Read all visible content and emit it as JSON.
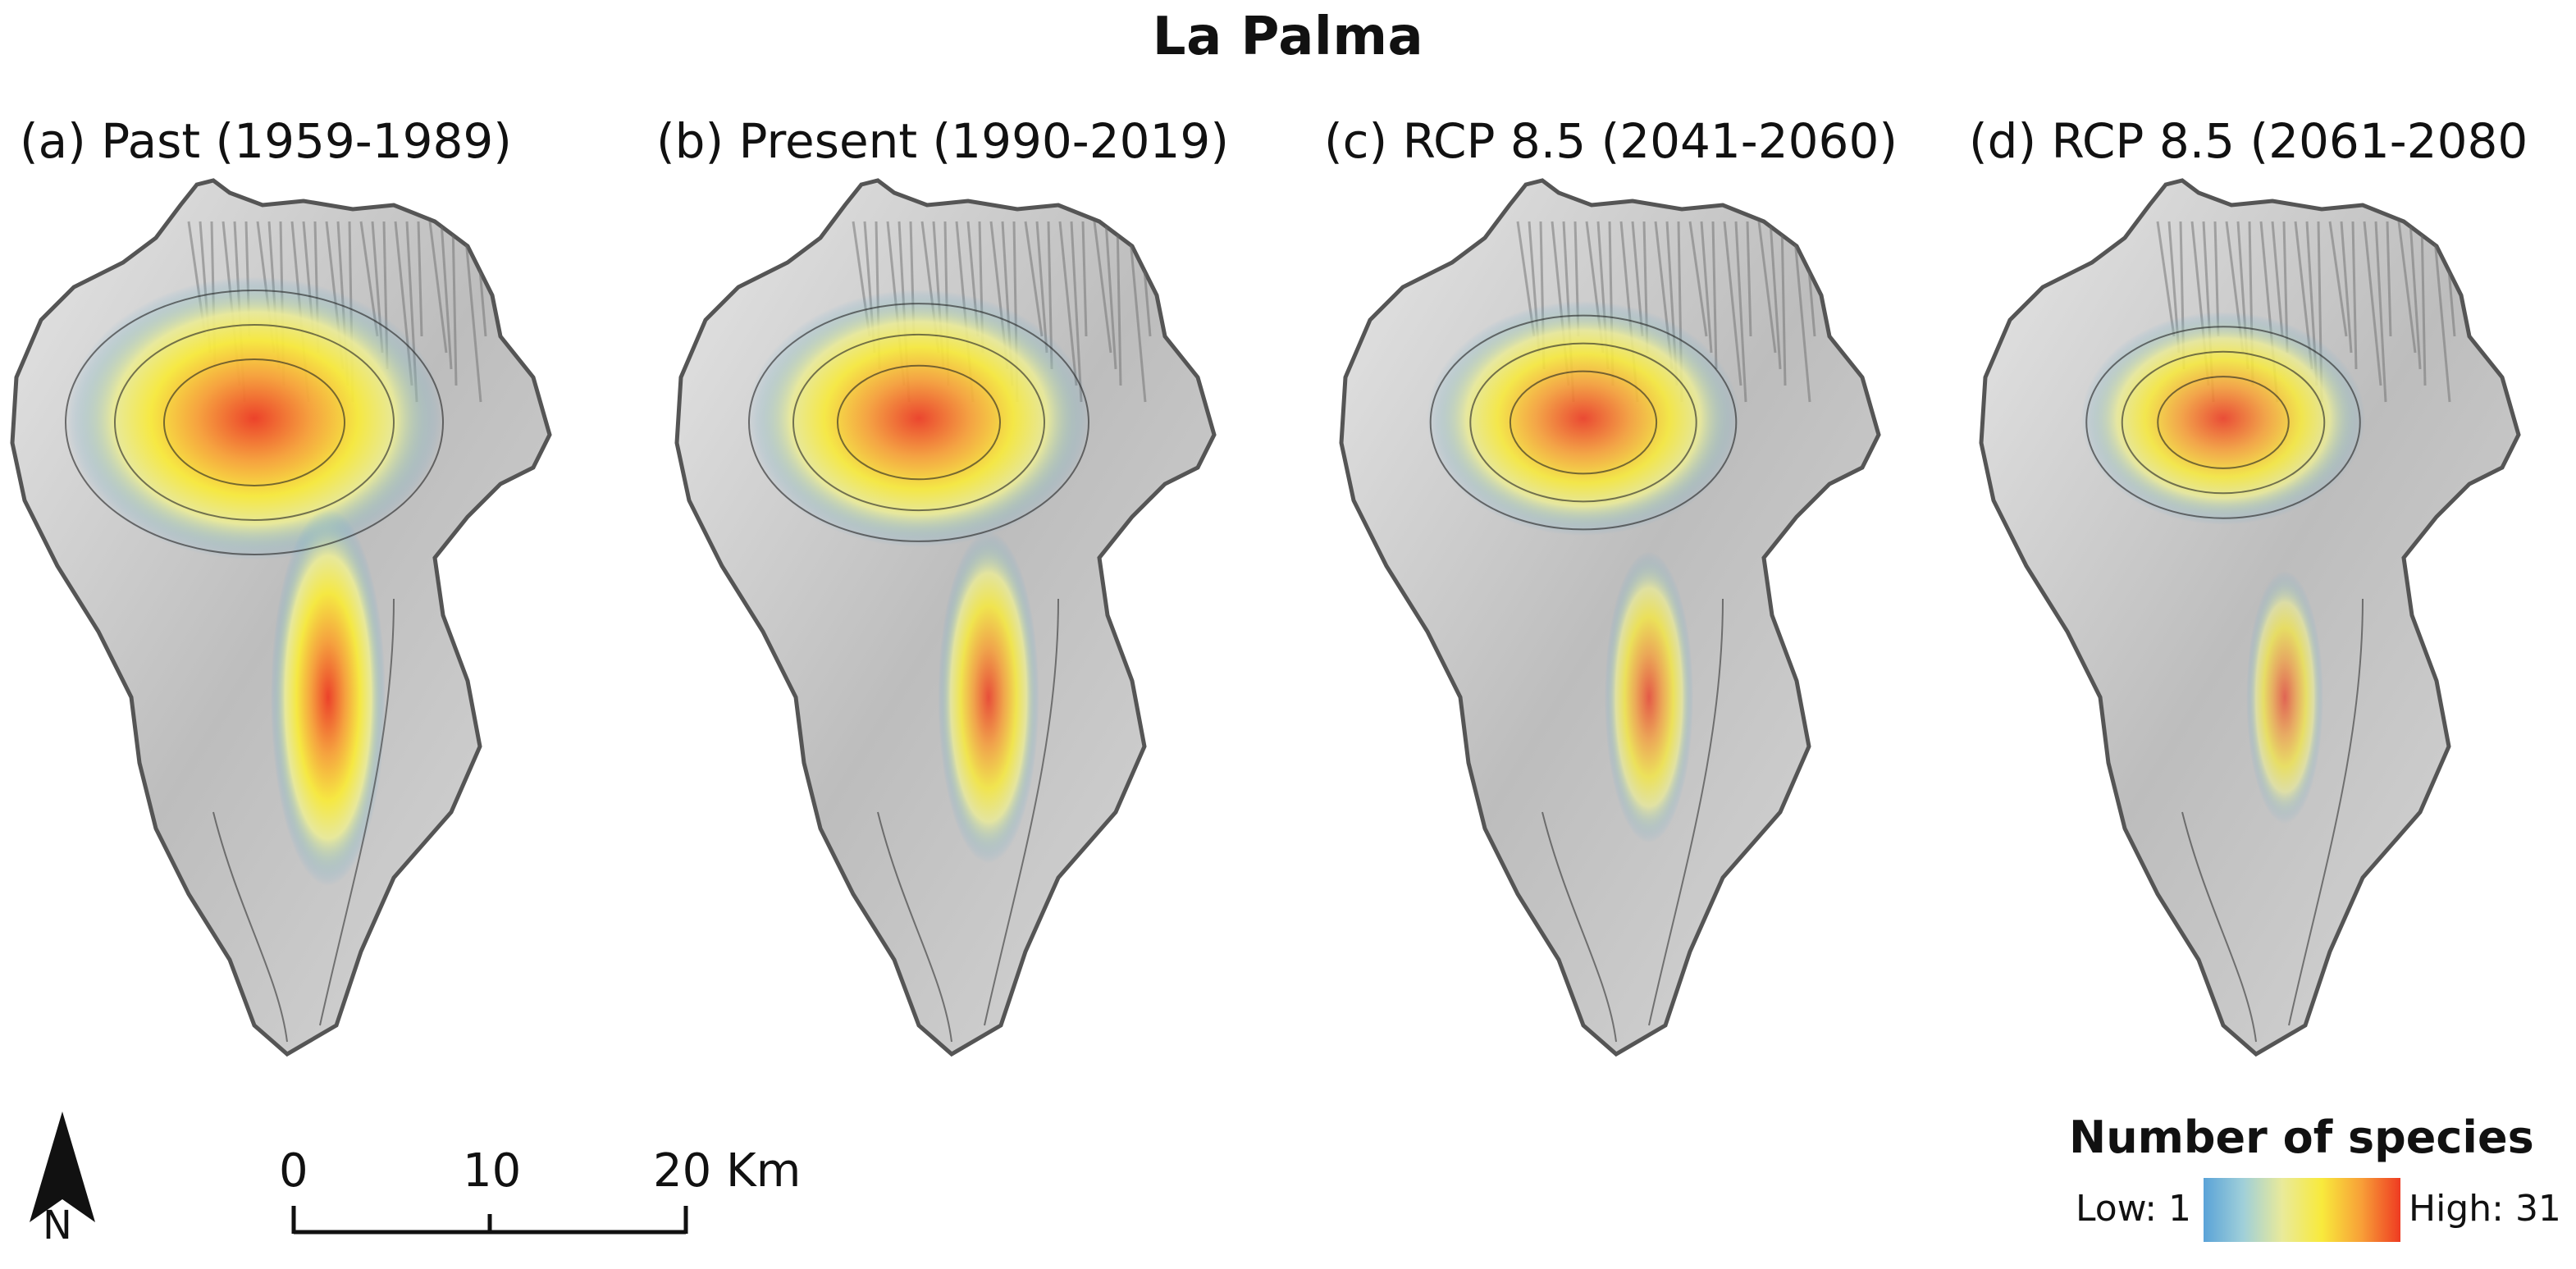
{
  "title": "La Palma",
  "panels": [
    {
      "label": "(a) Past (1959-1989)",
      "intensity": 1.0
    },
    {
      "label": "(b) Present (1990-2019)",
      "intensity": 0.8
    },
    {
      "label": "(c) RCP 8.5 (2041-2060)",
      "intensity": 0.62
    },
    {
      "label": "(d) RCP 8.5 (2061-2080",
      "intensity": 0.45
    }
  ],
  "north_arrow": {
    "label": "N"
  },
  "scale_bar": {
    "ticks": [
      "0",
      "10",
      "20 Km"
    ]
  },
  "legend": {
    "title": "Number of species",
    "low": "Low: 1",
    "high": "High: 31",
    "colors": [
      "#5aa3d8",
      "#9fcfd9",
      "#e9ea9a",
      "#f8ea3c",
      "#f8a038",
      "#ee3b22"
    ]
  }
}
